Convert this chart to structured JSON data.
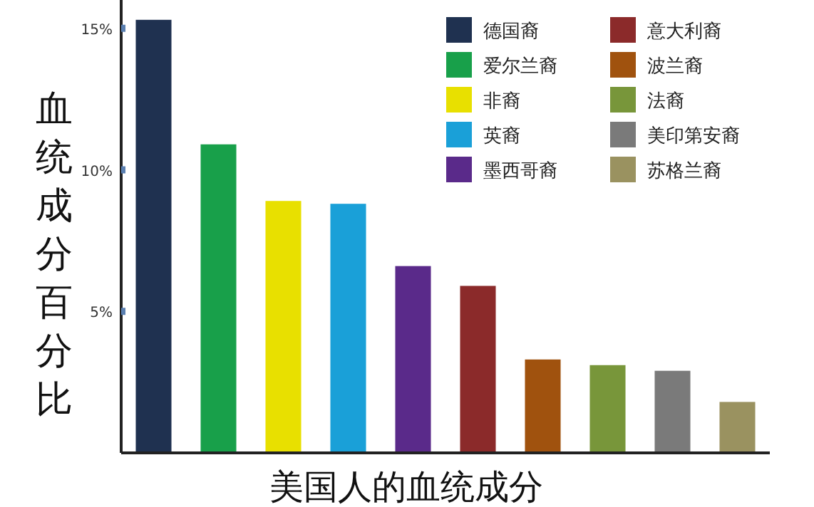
{
  "chart_data": {
    "type": "bar",
    "xlabel": "美国人的血统成分",
    "ylabel": "血统成分百分比",
    "categories": [
      null,
      null,
      null,
      null,
      null,
      null,
      null,
      null,
      null,
      null
    ],
    "series": [
      {
        "name": "德国裔",
        "color": "#1f3150",
        "values": [
          15.3,
          null,
          null,
          null,
          null,
          null,
          null,
          null,
          null,
          null
        ]
      },
      {
        "name": "爱尔兰裔",
        "color": "#18a04a",
        "values": [
          null,
          10.9,
          null,
          null,
          null,
          null,
          null,
          null,
          null,
          null
        ]
      },
      {
        "name": "非裔",
        "color": "#e8e000",
        "values": [
          null,
          null,
          8.9,
          null,
          null,
          null,
          null,
          null,
          null,
          null
        ]
      },
      {
        "name": "英裔",
        "color": "#1aa0d8",
        "values": [
          null,
          null,
          null,
          8.8,
          null,
          null,
          null,
          null,
          null,
          null
        ]
      },
      {
        "name": "墨西哥裔",
        "color": "#5a2a8a",
        "values": [
          null,
          null,
          null,
          null,
          6.6,
          null,
          null,
          null,
          null,
          null
        ]
      },
      {
        "name": "意大利裔",
        "color": "#8b2a2a",
        "values": [
          null,
          null,
          null,
          null,
          null,
          5.9,
          null,
          null,
          null,
          null
        ]
      },
      {
        "name": "波兰裔",
        "color": "#a0520e",
        "values": [
          null,
          null,
          null,
          null,
          null,
          null,
          3.3,
          null,
          null,
          null
        ]
      },
      {
        "name": "法裔",
        "color": "#78963a",
        "values": [
          null,
          null,
          null,
          null,
          null,
          null,
          null,
          3.1,
          null,
          null
        ]
      },
      {
        "name": "美印第安裔",
        "color": "#7a7a7a",
        "values": [
          null,
          null,
          null,
          null,
          null,
          null,
          null,
          null,
          2.9,
          null
        ]
      },
      {
        "name": "苏格兰裔",
        "color": "#9a9260",
        "values": [
          null,
          null,
          null,
          null,
          null,
          null,
          null,
          null,
          null,
          1.8
        ]
      }
    ],
    "ylim": [
      0,
      16
    ],
    "yticks": [
      {
        "value": 5,
        "label": "5%"
      },
      {
        "value": 10,
        "label": "10%"
      },
      {
        "value": 15,
        "label": "15%"
      }
    ],
    "legend": "top right"
  }
}
